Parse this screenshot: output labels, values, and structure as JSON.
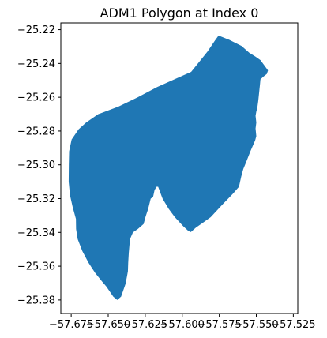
{
  "chart_data": {
    "type": "map-polygon",
    "title": "ADM1 Polygon at Index 0",
    "xlabel": "",
    "ylabel": "",
    "xlim": [
      -57.682,
      -57.522
    ],
    "ylim": [
      -25.388,
      -25.216
    ],
    "grid": false,
    "legend": "none",
    "fill_color": "#1f77b4",
    "x_ticks": [
      -57.675,
      -57.65,
      -57.625,
      -57.6,
      -57.575,
      -57.55,
      -57.525
    ],
    "x_tick_labels": [
      "−57.675",
      "−57.650",
      "−57.625",
      "−57.600",
      "−57.575",
      "−57.550",
      "−57.525"
    ],
    "y_ticks": [
      -25.22,
      -25.24,
      -25.26,
      -25.28,
      -25.3,
      -25.32,
      -25.34,
      -25.36,
      -25.38
    ],
    "y_tick_labels": [
      "−25.22",
      "−25.24",
      "−25.26",
      "−25.28",
      "−25.30",
      "−25.32",
      "−25.34",
      "−25.36",
      "−25.38"
    ],
    "polygon": [
      [
        -57.5755,
        -25.2235
      ],
      [
        -57.5683,
        -25.226
      ],
      [
        -57.56,
        -25.2296
      ],
      [
        -57.5547,
        -25.2337
      ],
      [
        -57.5505,
        -25.236
      ],
      [
        -57.5472,
        -25.238
      ],
      [
        -57.5441,
        -25.2417
      ],
      [
        -57.5421,
        -25.2441
      ],
      [
        -57.5429,
        -25.2462
      ],
      [
        -57.5452,
        -25.2478
      ],
      [
        -57.5472,
        -25.2494
      ],
      [
        -57.5475,
        -25.2522
      ],
      [
        -57.548,
        -25.2565
      ],
      [
        -57.5487,
        -25.2623
      ],
      [
        -57.5493,
        -25.2661
      ],
      [
        -57.55,
        -25.2685
      ],
      [
        -57.5505,
        -25.271
      ],
      [
        -57.55,
        -25.275
      ],
      [
        -57.5505,
        -25.2785
      ],
      [
        -57.55,
        -25.283
      ],
      [
        -57.5508,
        -25.2856
      ],
      [
        -57.554,
        -25.292
      ],
      [
        -57.5567,
        -25.298
      ],
      [
        -57.5588,
        -25.3025
      ],
      [
        -57.5602,
        -25.307
      ],
      [
        -57.5617,
        -25.313
      ],
      [
        -57.5657,
        -25.317
      ],
      [
        -57.5723,
        -25.323
      ],
      [
        -57.5808,
        -25.331
      ],
      [
        -57.5908,
        -25.3372
      ],
      [
        -57.5942,
        -25.3398
      ],
      [
        -57.5958,
        -25.3392
      ],
      [
        -57.5992,
        -25.3365
      ],
      [
        -57.605,
        -25.331
      ],
      [
        -57.6092,
        -25.326
      ],
      [
        -57.6133,
        -25.32
      ],
      [
        -57.615,
        -25.316
      ],
      [
        -57.6163,
        -25.313
      ],
      [
        -57.6174,
        -25.313
      ],
      [
        -57.6187,
        -25.315
      ],
      [
        -57.6197,
        -25.319
      ],
      [
        -57.6213,
        -25.32
      ],
      [
        -57.623,
        -25.326
      ],
      [
        -57.6247,
        -25.3305
      ],
      [
        -57.6261,
        -25.335
      ],
      [
        -57.63,
        -25.338
      ],
      [
        -57.6333,
        -25.34
      ],
      [
        -57.6353,
        -25.344
      ],
      [
        -57.6361,
        -25.352
      ],
      [
        -57.6365,
        -25.358
      ],
      [
        -57.6367,
        -25.363
      ],
      [
        -57.6373,
        -25.366
      ],
      [
        -57.6383,
        -25.3705
      ],
      [
        -57.6403,
        -25.3755
      ],
      [
        -57.6413,
        -25.378
      ],
      [
        -57.6439,
        -25.38
      ],
      [
        -57.6466,
        -25.378
      ],
      [
        -57.6513,
        -25.372
      ],
      [
        -57.6542,
        -25.369
      ],
      [
        -57.6588,
        -25.364
      ],
      [
        -57.6633,
        -25.358
      ],
      [
        -57.6675,
        -25.351
      ],
      [
        -57.6706,
        -25.344
      ],
      [
        -57.6717,
        -25.338
      ],
      [
        -57.6718,
        -25.332
      ],
      [
        -57.674,
        -25.325
      ],
      [
        -57.6758,
        -25.318
      ],
      [
        -57.6767,
        -25.31
      ],
      [
        -57.6766,
        -25.3
      ],
      [
        -57.6764,
        -25.292
      ],
      [
        -57.6747,
        -25.285
      ],
      [
        -57.67,
        -25.279
      ],
      [
        -57.665,
        -25.275
      ],
      [
        -57.6567,
        -25.27
      ],
      [
        -57.643,
        -25.2655
      ],
      [
        -57.63,
        -25.26
      ],
      [
        -57.617,
        -25.254
      ],
      [
        -57.603,
        -25.2485
      ],
      [
        -57.594,
        -25.245
      ],
      [
        -57.583,
        -25.233
      ],
      [
        -57.578,
        -25.2265
      ],
      [
        -57.5755,
        -25.2235
      ]
    ]
  }
}
